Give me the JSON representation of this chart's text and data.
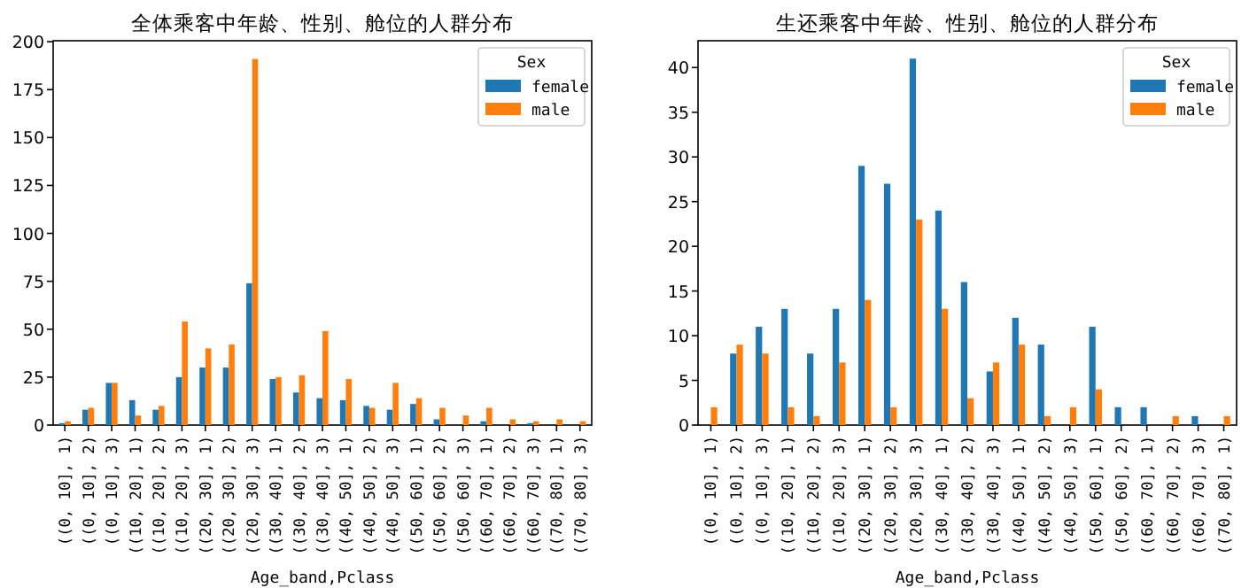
{
  "chart_data": [
    {
      "type": "bar",
      "title": "全体乘客中年龄、性别、舱位的人群分布",
      "xlabel": "Age_band,Pclass",
      "legend_title": "Sex",
      "legend": "top right",
      "grid": false,
      "categories": [
        "((0, 10], 1)",
        "((0, 10], 2)",
        "((0, 10], 3)",
        "((10, 20], 1)",
        "((10, 20], 2)",
        "((10, 20], 3)",
        "((20, 30], 1)",
        "((20, 30], 2)",
        "((20, 30], 3)",
        "((30, 40], 1)",
        "((30, 40], 2)",
        "((30, 40], 3)",
        "((40, 50], 1)",
        "((40, 50], 2)",
        "((40, 50], 3)",
        "((50, 60], 1)",
        "((50, 60], 2)",
        "((50, 60], 3)",
        "((60, 70], 1)",
        "((60, 70], 2)",
        "((60, 70], 3)",
        "((70, 80], 1)",
        "((70, 80], 3)"
      ],
      "series": [
        {
          "name": "female",
          "color": "#1f77b4",
          "values": [
            1,
            8,
            22,
            13,
            8,
            25,
            30,
            30,
            74,
            24,
            17,
            14,
            13,
            10,
            8,
            11,
            3,
            null,
            2,
            null,
            1,
            null,
            null
          ]
        },
        {
          "name": "male",
          "color": "#ff7f0e",
          "values": [
            2,
            9,
            22,
            5,
            10,
            54,
            40,
            42,
            191,
            25,
            26,
            49,
            24,
            9,
            22,
            14,
            9,
            5,
            9,
            3,
            2,
            3,
            2
          ]
        }
      ],
      "ylim": [
        0,
        200.5
      ],
      "yticks": [
        0,
        25,
        50,
        75,
        100,
        125,
        150,
        175,
        200
      ]
    },
    {
      "type": "bar",
      "title": "生还乘客中年龄、性别、舱位的人群分布",
      "xlabel": "Age_band,Pclass",
      "legend_title": "Sex",
      "legend": "top right",
      "grid": false,
      "categories": [
        "((0, 10], 1)",
        "((0, 10], 2)",
        "((0, 10], 3)",
        "((10, 20], 1)",
        "((10, 20], 2)",
        "((10, 20], 3)",
        "((20, 30], 1)",
        "((20, 30], 2)",
        "((20, 30], 3)",
        "((30, 40], 1)",
        "((30, 40], 2)",
        "((30, 40], 3)",
        "((40, 50], 1)",
        "((40, 50], 2)",
        "((40, 50], 3)",
        "((50, 60], 1)",
        "((50, 60], 2)",
        "((60, 70], 1)",
        "((60, 70], 2)",
        "((60, 70], 3)",
        "((70, 80], 1)"
      ],
      "series": [
        {
          "name": "female",
          "color": "#1f77b4",
          "values": [
            null,
            8,
            11,
            13,
            8,
            13,
            29,
            27,
            41,
            24,
            16,
            6,
            12,
            9,
            null,
            11,
            2,
            2,
            null,
            1,
            null
          ]
        },
        {
          "name": "male",
          "color": "#ff7f0e",
          "values": [
            2,
            9,
            8,
            2,
            1,
            7,
            14,
            2,
            23,
            13,
            3,
            7,
            9,
            1,
            2,
            4,
            null,
            null,
            1,
            null,
            1
          ]
        }
      ],
      "ylim": [
        0,
        43
      ],
      "yticks": [
        0,
        5,
        10,
        15,
        20,
        25,
        30,
        35,
        40
      ]
    }
  ]
}
